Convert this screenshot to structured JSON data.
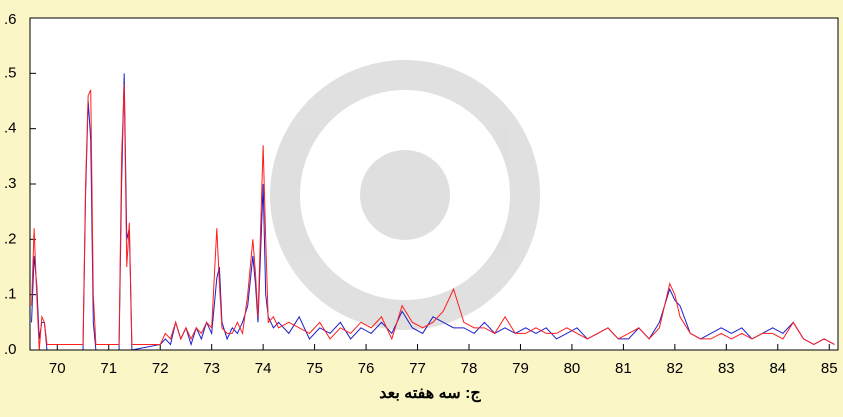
{
  "chart_data": {
    "type": "line",
    "title": "ج: سه هفته بعد",
    "x": [
      69.5,
      69.55,
      69.6,
      69.65,
      69.7,
      69.75,
      69.8,
      70.5,
      70.55,
      70.6,
      70.65,
      70.7,
      70.75,
      71.2,
      71.25,
      71.3,
      71.35,
      71.4,
      71.45,
      72.0,
      72.1,
      72.2,
      72.3,
      72.4,
      72.5,
      72.6,
      72.7,
      72.8,
      72.9,
      73.0,
      73.1,
      73.15,
      73.2,
      73.3,
      73.4,
      73.5,
      73.6,
      73.7,
      73.8,
      73.85,
      73.9,
      74.0,
      74.05,
      74.1,
      74.2,
      74.3,
      74.5,
      74.7,
      74.9,
      75.1,
      75.3,
      75.5,
      75.7,
      75.9,
      76.1,
      76.3,
      76.5,
      76.7,
      76.9,
      77.1,
      77.3,
      77.5,
      77.7,
      77.9,
      78.1,
      78.3,
      78.5,
      78.7,
      78.9,
      79.1,
      79.3,
      79.5,
      79.7,
      79.9,
      80.1,
      80.3,
      80.5,
      80.7,
      80.9,
      81.1,
      81.3,
      81.5,
      81.7,
      81.9,
      82.0,
      82.1,
      82.3,
      82.5,
      82.7,
      82.9,
      83.1,
      83.3,
      83.5,
      83.7,
      83.9,
      84.1,
      84.3,
      84.5,
      84.7,
      84.9,
      85.1
    ],
    "series": [
      {
        "color": "#1c1cc8",
        "values": [
          0.05,
          0.17,
          0.12,
          0.02,
          0.05,
          0.05,
          0,
          0,
          0.28,
          0.45,
          0.38,
          0.05,
          0,
          0,
          0.3,
          0.5,
          0.2,
          0.22,
          0,
          0.01,
          0.02,
          0.01,
          0.05,
          0.02,
          0.04,
          0.01,
          0.04,
          0.02,
          0.05,
          0.03,
          0.13,
          0.15,
          0.05,
          0.02,
          0.04,
          0.03,
          0.05,
          0.08,
          0.17,
          0.12,
          0.05,
          0.3,
          0.1,
          0.06,
          0.04,
          0.05,
          0.03,
          0.06,
          0.02,
          0.04,
          0.03,
          0.05,
          0.02,
          0.04,
          0.03,
          0.05,
          0.03,
          0.07,
          0.04,
          0.03,
          0.06,
          0.05,
          0.04,
          0.04,
          0.03,
          0.05,
          0.03,
          0.04,
          0.03,
          0.04,
          0.03,
          0.04,
          0.02,
          0.03,
          0.04,
          0.02,
          0.03,
          0.04,
          0.02,
          0.02,
          0.04,
          0.02,
          0.05,
          0.11,
          0.09,
          0.08,
          0.03,
          0.02,
          0.03,
          0.04,
          0.03,
          0.04,
          0.02,
          0.03,
          0.04,
          0.03,
          0.05,
          0.02,
          0.01,
          0.02,
          0.01
        ]
      },
      {
        "color": "#ff1e1e",
        "values": [
          0.08,
          0.22,
          0.1,
          0,
          0.06,
          0.05,
          0.01,
          0.01,
          0.3,
          0.46,
          0.47,
          0.1,
          0.01,
          0.01,
          0.35,
          0.48,
          0.15,
          0.23,
          0.01,
          0.01,
          0.03,
          0.02,
          0.05,
          0.02,
          0.04,
          0.02,
          0.04,
          0.03,
          0.05,
          0.04,
          0.22,
          0.12,
          0.04,
          0.03,
          0.03,
          0.05,
          0.03,
          0.1,
          0.2,
          0.14,
          0.06,
          0.37,
          0.2,
          0.05,
          0.06,
          0.04,
          0.05,
          0.04,
          0.03,
          0.05,
          0.02,
          0.04,
          0.03,
          0.05,
          0.04,
          0.06,
          0.02,
          0.08,
          0.05,
          0.04,
          0.05,
          0.07,
          0.11,
          0.05,
          0.04,
          0.04,
          0.03,
          0.06,
          0.03,
          0.03,
          0.04,
          0.03,
          0.03,
          0.04,
          0.03,
          0.02,
          0.03,
          0.04,
          0.02,
          0.03,
          0.04,
          0.02,
          0.04,
          0.12,
          0.1,
          0.06,
          0.03,
          0.02,
          0.02,
          0.03,
          0.02,
          0.03,
          0.02,
          0.03,
          0.03,
          0.02,
          0.05,
          0.02,
          0.01,
          0.02,
          0.01
        ]
      }
    ],
    "xlim": [
      69.47,
      85.17
    ],
    "ylim": [
      0,
      0.6
    ],
    "xticks": [
      70,
      71,
      72,
      73,
      74,
      75,
      76,
      77,
      78,
      79,
      80,
      81,
      82,
      83,
      84,
      85
    ],
    "yticks": [
      {
        "value": 0,
        "label": ".0"
      },
      {
        "value": 0.1,
        "label": ".1"
      },
      {
        "value": 0.2,
        "label": ".2"
      },
      {
        "value": 0.3,
        "label": ".3"
      },
      {
        "value": 0.4,
        "label": ".4"
      },
      {
        "value": 0.5,
        "label": ".5"
      },
      {
        "value": 0.6,
        "label": ".6"
      }
    ]
  }
}
